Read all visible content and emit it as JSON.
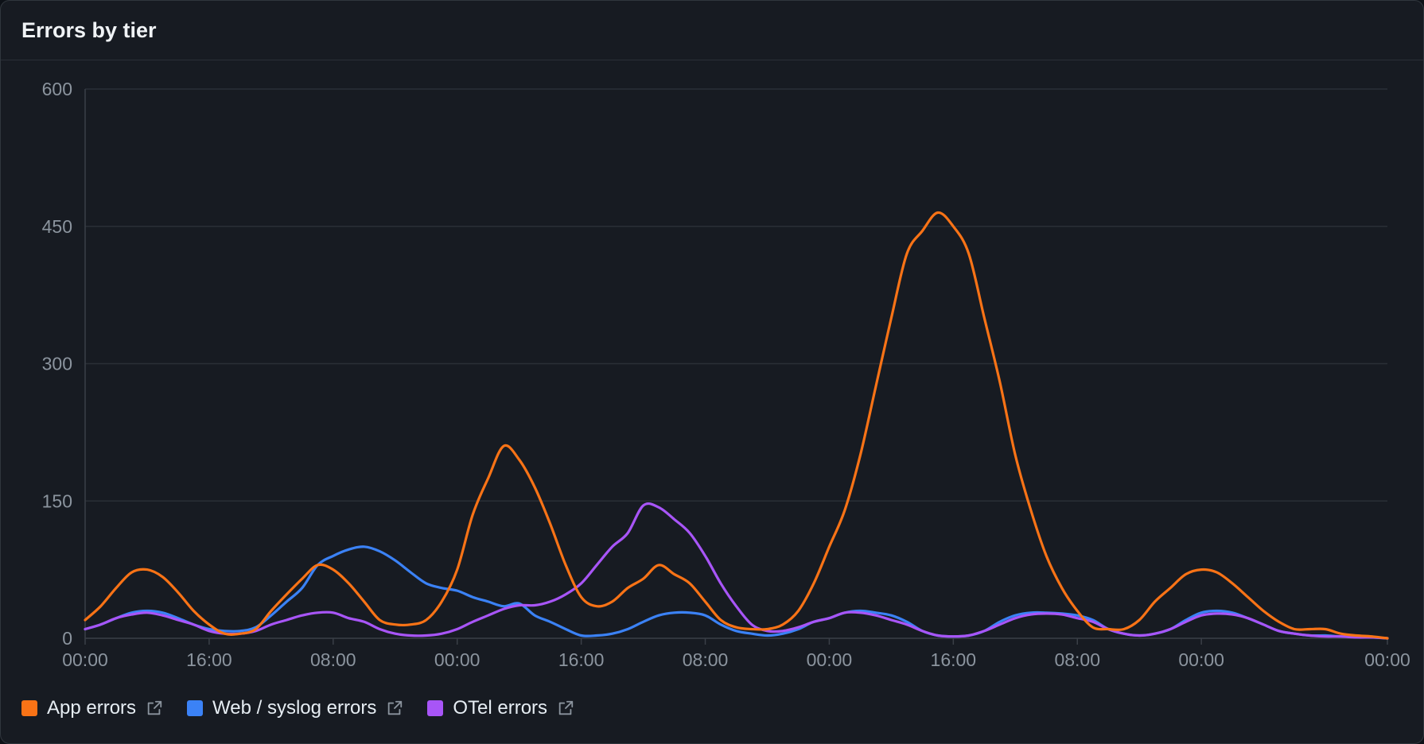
{
  "panel": {
    "title": "Errors by tier"
  },
  "legend": [
    {
      "label": "App errors",
      "color": "#f97316",
      "icon": "external-link-icon"
    },
    {
      "label": "Web / syslog errors",
      "color": "#3b82f6",
      "icon": "external-link-icon"
    },
    {
      "label": "OTel errors",
      "color": "#a855f7",
      "icon": "external-link-icon"
    }
  ],
  "chart_data": {
    "type": "line",
    "title": "Errors by tier",
    "ylim": [
      0,
      600
    ],
    "y_ticks": [
      0,
      150,
      300,
      450,
      600
    ],
    "xlim": [
      0,
      168
    ],
    "x_ticks": [
      {
        "x": 0,
        "label": "00:00"
      },
      {
        "x": 16,
        "label": "16:00"
      },
      {
        "x": 32,
        "label": "08:00"
      },
      {
        "x": 48,
        "label": "00:00"
      },
      {
        "x": 64,
        "label": "16:00"
      },
      {
        "x": 80,
        "label": "08:00"
      },
      {
        "x": 96,
        "label": "00:00"
      },
      {
        "x": 112,
        "label": "16:00"
      },
      {
        "x": 128,
        "label": "08:00"
      },
      {
        "x": 144,
        "label": "00:00"
      },
      {
        "x": 168,
        "label": "00:00"
      }
    ],
    "grid": true,
    "legend_position": "bottom-left",
    "series": [
      {
        "name": "App errors",
        "color": "#f97316",
        "points": [
          [
            0,
            20
          ],
          [
            2,
            35
          ],
          [
            4,
            55
          ],
          [
            6,
            72
          ],
          [
            8,
            75
          ],
          [
            10,
            67
          ],
          [
            12,
            50
          ],
          [
            14,
            30
          ],
          [
            16,
            15
          ],
          [
            18,
            5
          ],
          [
            20,
            5
          ],
          [
            22,
            10
          ],
          [
            24,
            30
          ],
          [
            26,
            48
          ],
          [
            28,
            65
          ],
          [
            30,
            80
          ],
          [
            32,
            75
          ],
          [
            34,
            60
          ],
          [
            36,
            40
          ],
          [
            38,
            20
          ],
          [
            40,
            15
          ],
          [
            42,
            15
          ],
          [
            44,
            20
          ],
          [
            46,
            40
          ],
          [
            48,
            75
          ],
          [
            50,
            135
          ],
          [
            52,
            175
          ],
          [
            54,
            210
          ],
          [
            56,
            195
          ],
          [
            58,
            165
          ],
          [
            60,
            125
          ],
          [
            62,
            80
          ],
          [
            64,
            45
          ],
          [
            66,
            35
          ],
          [
            68,
            40
          ],
          [
            70,
            55
          ],
          [
            72,
            65
          ],
          [
            74,
            80
          ],
          [
            76,
            70
          ],
          [
            78,
            60
          ],
          [
            80,
            40
          ],
          [
            82,
            20
          ],
          [
            84,
            12
          ],
          [
            86,
            10
          ],
          [
            88,
            10
          ],
          [
            90,
            15
          ],
          [
            92,
            30
          ],
          [
            94,
            60
          ],
          [
            96,
            100
          ],
          [
            98,
            140
          ],
          [
            100,
            200
          ],
          [
            102,
            275
          ],
          [
            104,
            350
          ],
          [
            106,
            420
          ],
          [
            108,
            445
          ],
          [
            110,
            465
          ],
          [
            112,
            450
          ],
          [
            114,
            420
          ],
          [
            116,
            350
          ],
          [
            118,
            280
          ],
          [
            120,
            200
          ],
          [
            122,
            140
          ],
          [
            124,
            90
          ],
          [
            126,
            55
          ],
          [
            128,
            30
          ],
          [
            130,
            12
          ],
          [
            132,
            10
          ],
          [
            134,
            10
          ],
          [
            136,
            20
          ],
          [
            138,
            40
          ],
          [
            140,
            55
          ],
          [
            142,
            70
          ],
          [
            144,
            75
          ],
          [
            146,
            72
          ],
          [
            148,
            60
          ],
          [
            150,
            45
          ],
          [
            152,
            30
          ],
          [
            154,
            18
          ],
          [
            156,
            10
          ],
          [
            158,
            10
          ],
          [
            160,
            10
          ],
          [
            162,
            5
          ],
          [
            164,
            3
          ],
          [
            166,
            2
          ],
          [
            168,
            0
          ]
        ]
      },
      {
        "name": "Web / syslog errors",
        "color": "#3b82f6",
        "points": [
          [
            0,
            10
          ],
          [
            2,
            15
          ],
          [
            4,
            22
          ],
          [
            6,
            28
          ],
          [
            8,
            30
          ],
          [
            10,
            28
          ],
          [
            12,
            22
          ],
          [
            14,
            15
          ],
          [
            16,
            10
          ],
          [
            18,
            8
          ],
          [
            20,
            8
          ],
          [
            22,
            12
          ],
          [
            24,
            25
          ],
          [
            26,
            40
          ],
          [
            28,
            55
          ],
          [
            30,
            80
          ],
          [
            32,
            90
          ],
          [
            34,
            97
          ],
          [
            36,
            100
          ],
          [
            38,
            95
          ],
          [
            40,
            85
          ],
          [
            42,
            72
          ],
          [
            44,
            60
          ],
          [
            46,
            55
          ],
          [
            48,
            52
          ],
          [
            50,
            45
          ],
          [
            52,
            40
          ],
          [
            54,
            35
          ],
          [
            56,
            38
          ],
          [
            58,
            25
          ],
          [
            60,
            18
          ],
          [
            62,
            10
          ],
          [
            64,
            3
          ],
          [
            66,
            3
          ],
          [
            68,
            5
          ],
          [
            70,
            10
          ],
          [
            72,
            18
          ],
          [
            74,
            25
          ],
          [
            76,
            28
          ],
          [
            78,
            28
          ],
          [
            80,
            25
          ],
          [
            82,
            15
          ],
          [
            84,
            8
          ],
          [
            86,
            5
          ],
          [
            88,
            3
          ],
          [
            90,
            5
          ],
          [
            92,
            10
          ],
          [
            94,
            18
          ],
          [
            96,
            22
          ],
          [
            98,
            28
          ],
          [
            100,
            30
          ],
          [
            102,
            28
          ],
          [
            104,
            25
          ],
          [
            106,
            18
          ],
          [
            108,
            8
          ],
          [
            110,
            3
          ],
          [
            112,
            2
          ],
          [
            114,
            3
          ],
          [
            116,
            8
          ],
          [
            118,
            18
          ],
          [
            120,
            25
          ],
          [
            122,
            28
          ],
          [
            124,
            28
          ],
          [
            126,
            27
          ],
          [
            128,
            25
          ],
          [
            130,
            20
          ],
          [
            132,
            10
          ],
          [
            134,
            5
          ],
          [
            136,
            3
          ],
          [
            138,
            5
          ],
          [
            140,
            10
          ],
          [
            142,
            20
          ],
          [
            144,
            28
          ],
          [
            146,
            30
          ],
          [
            148,
            28
          ],
          [
            150,
            22
          ],
          [
            152,
            15
          ],
          [
            154,
            8
          ],
          [
            156,
            5
          ],
          [
            158,
            3
          ],
          [
            160,
            3
          ],
          [
            162,
            2
          ],
          [
            164,
            2
          ],
          [
            166,
            1
          ],
          [
            168,
            0
          ]
        ]
      },
      {
        "name": "OTel errors",
        "color": "#a855f7",
        "points": [
          [
            0,
            10
          ],
          [
            2,
            15
          ],
          [
            4,
            22
          ],
          [
            6,
            26
          ],
          [
            8,
            28
          ],
          [
            10,
            25
          ],
          [
            12,
            20
          ],
          [
            14,
            15
          ],
          [
            16,
            8
          ],
          [
            18,
            5
          ],
          [
            20,
            5
          ],
          [
            22,
            8
          ],
          [
            24,
            15
          ],
          [
            26,
            20
          ],
          [
            28,
            25
          ],
          [
            30,
            28
          ],
          [
            32,
            28
          ],
          [
            34,
            22
          ],
          [
            36,
            18
          ],
          [
            38,
            10
          ],
          [
            40,
            5
          ],
          [
            42,
            3
          ],
          [
            44,
            3
          ],
          [
            46,
            5
          ],
          [
            48,
            10
          ],
          [
            50,
            18
          ],
          [
            52,
            25
          ],
          [
            54,
            32
          ],
          [
            56,
            36
          ],
          [
            58,
            36
          ],
          [
            60,
            40
          ],
          [
            62,
            48
          ],
          [
            64,
            60
          ],
          [
            66,
            80
          ],
          [
            68,
            100
          ],
          [
            70,
            115
          ],
          [
            72,
            145
          ],
          [
            74,
            143
          ],
          [
            76,
            130
          ],
          [
            78,
            115
          ],
          [
            80,
            90
          ],
          [
            82,
            60
          ],
          [
            84,
            35
          ],
          [
            86,
            15
          ],
          [
            88,
            8
          ],
          [
            90,
            8
          ],
          [
            92,
            12
          ],
          [
            94,
            18
          ],
          [
            96,
            22
          ],
          [
            98,
            28
          ],
          [
            100,
            28
          ],
          [
            102,
            25
          ],
          [
            104,
            20
          ],
          [
            106,
            15
          ],
          [
            108,
            8
          ],
          [
            110,
            3
          ],
          [
            112,
            2
          ],
          [
            114,
            3
          ],
          [
            116,
            8
          ],
          [
            118,
            15
          ],
          [
            120,
            22
          ],
          [
            122,
            26
          ],
          [
            124,
            27
          ],
          [
            126,
            26
          ],
          [
            128,
            22
          ],
          [
            130,
            18
          ],
          [
            132,
            10
          ],
          [
            134,
            5
          ],
          [
            136,
            3
          ],
          [
            138,
            5
          ],
          [
            140,
            10
          ],
          [
            142,
            18
          ],
          [
            144,
            25
          ],
          [
            146,
            27
          ],
          [
            148,
            26
          ],
          [
            150,
            22
          ],
          [
            152,
            15
          ],
          [
            154,
            8
          ],
          [
            156,
            5
          ],
          [
            158,
            3
          ],
          [
            160,
            2
          ],
          [
            162,
            2
          ],
          [
            164,
            1
          ],
          [
            166,
            1
          ],
          [
            168,
            0
          ]
        ]
      }
    ]
  }
}
